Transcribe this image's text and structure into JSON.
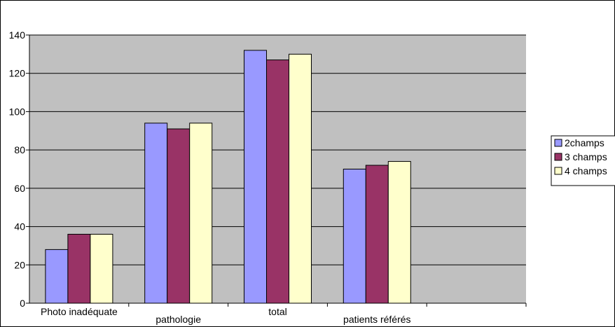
{
  "chart_data": {
    "type": "bar",
    "title": "",
    "xlabel": "",
    "ylabel": "",
    "categories": [
      "Photo inadéquate",
      "pathologie",
      "total",
      "patients référés",
      ""
    ],
    "series": [
      {
        "name": "2champs",
        "values": [
          28,
          94,
          132,
          70,
          null
        ]
      },
      {
        "name": "3 champs",
        "values": [
          36,
          91,
          127,
          72,
          null
        ]
      },
      {
        "name": "4 champs",
        "values": [
          36,
          94,
          130,
          74,
          null
        ]
      }
    ],
    "ylim": [
      0,
      140
    ],
    "yticks": [
      "0",
      "20",
      "40",
      "60",
      "80",
      "100",
      "120",
      "140"
    ],
    "grid": true,
    "legend_position": "right",
    "colors": {
      "series": [
        "#9999ff",
        "#993366",
        "#ffffcc"
      ],
      "plot_background": "#c0c0c0",
      "gridline": "#000000",
      "bar_outline": "#000000"
    }
  }
}
